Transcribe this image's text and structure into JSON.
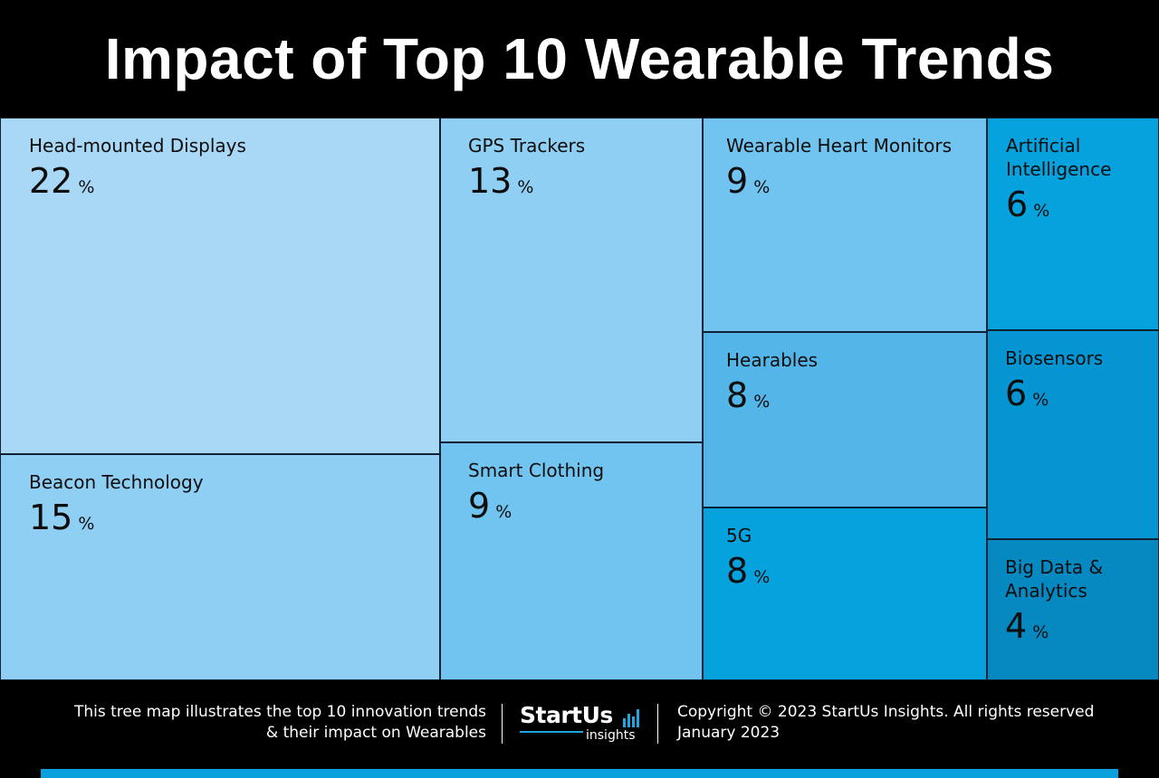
{
  "title": "Impact of Top 10 Wearable Trends",
  "chart_data": {
    "type": "treemap",
    "title": "Impact of Top 10 Wearable Trends",
    "unit": "%",
    "items": [
      {
        "label": "Head-mounted Displays",
        "value": 22,
        "color": "#a9d8f6"
      },
      {
        "label": "Beacon Technology",
        "value": 15,
        "color": "#8ecff3"
      },
      {
        "label": "GPS Trackers",
        "value": 13,
        "color": "#8ecff3"
      },
      {
        "label": "Smart Clothing",
        "value": 9,
        "color": "#70c4ef"
      },
      {
        "label": "Wearable Heart Monitors",
        "value": 9,
        "color": "#70c4ef"
      },
      {
        "label": "Hearables",
        "value": 8,
        "color": "#54b5e8"
      },
      {
        "label": "5G",
        "value": 8,
        "color": "#05a2de"
      },
      {
        "label": "Artificial Intelligence",
        "value": 6,
        "color": "#05a2de"
      },
      {
        "label": "Biosensors",
        "value": 6,
        "color": "#0595d2"
      },
      {
        "label": "Big Data & Analytics",
        "value": 4,
        "color": "#0688c0"
      }
    ]
  },
  "footer": {
    "description_line1": "This tree map illustrates the top 10 innovation trends",
    "description_line2": "& their impact on Wearables",
    "logo_name": "StartUs",
    "logo_sub": "insights",
    "copyright": "Copyright © 2023 StartUs Insights. All rights reserved",
    "date": "January 2023",
    "accent_color": "#0aa0dc"
  }
}
